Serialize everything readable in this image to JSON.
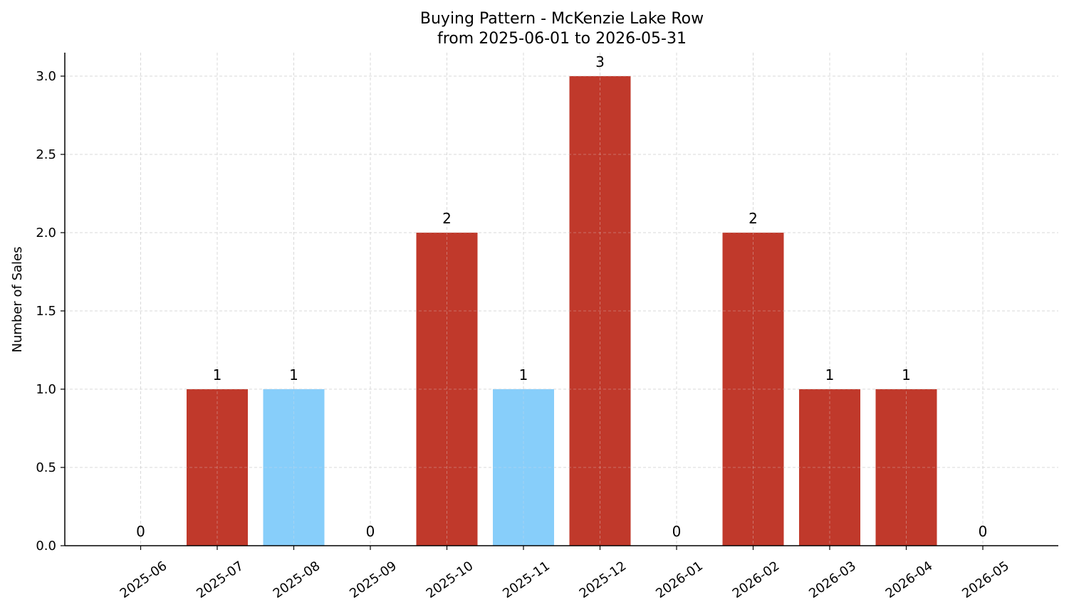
{
  "chart_data": {
    "type": "bar",
    "title": "Buying Pattern - McKenzie Lake Row",
    "subtitle": "from 2025-06-01 to 2026-05-31",
    "xlabel": "",
    "ylabel": "Number of Sales",
    "ylim": [
      0,
      3.15
    ],
    "yticks": [
      "0.0",
      "0.5",
      "1.0",
      "1.5",
      "2.0",
      "2.5",
      "3.0"
    ],
    "categories": [
      "2025-06",
      "2025-07",
      "2025-08",
      "2025-09",
      "2025-10",
      "2025-11",
      "2025-12",
      "2026-01",
      "2026-02",
      "2026-03",
      "2026-04",
      "2026-05"
    ],
    "values": [
      0,
      1,
      1,
      0,
      2,
      1,
      3,
      0,
      2,
      1,
      1,
      0
    ],
    "data_labels": [
      "0",
      "1",
      "1",
      "0",
      "2",
      "1",
      "3",
      "0",
      "2",
      "1",
      "1",
      "0"
    ],
    "bar_colors": [
      "#c0392b",
      "#c0392b",
      "#87cefa",
      "#c0392b",
      "#c0392b",
      "#87cefa",
      "#c0392b",
      "#c0392b",
      "#c0392b",
      "#c0392b",
      "#c0392b",
      "#c0392b"
    ],
    "grid": true,
    "legend": "none"
  }
}
